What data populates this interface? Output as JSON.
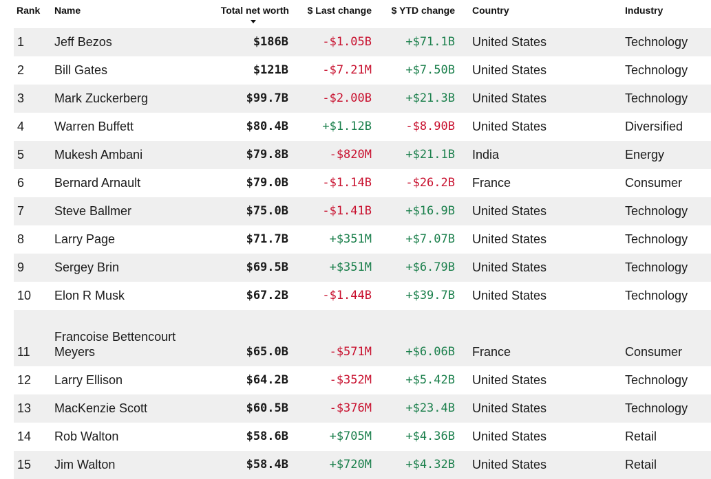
{
  "header": {
    "rank": "Rank",
    "name": "Name",
    "net_worth": "Total net worth",
    "last_change": "$ Last change",
    "ytd_change": "$ YTD change",
    "country": "Country",
    "industry": "Industry",
    "sort_icon": "caret-down-icon"
  },
  "colors": {
    "negative": "#c8102e",
    "positive": "#1a7f4b",
    "alt_row": "#efefef"
  },
  "rows": [
    {
      "rank": "1",
      "name": "Jeff Bezos",
      "net_worth": "$186B",
      "last_change": "-$1.05B",
      "ytd_change": "+$71.1B",
      "country": "United States",
      "industry": "Technology"
    },
    {
      "rank": "2",
      "name": "Bill Gates",
      "net_worth": "$121B",
      "last_change": "-$7.21M",
      "ytd_change": "+$7.50B",
      "country": "United States",
      "industry": "Technology"
    },
    {
      "rank": "3",
      "name": "Mark Zuckerberg",
      "net_worth": "$99.7B",
      "last_change": "-$2.00B",
      "ytd_change": "+$21.3B",
      "country": "United States",
      "industry": "Technology"
    },
    {
      "rank": "4",
      "name": "Warren Buffett",
      "net_worth": "$80.4B",
      "last_change": "+$1.12B",
      "ytd_change": "-$8.90B",
      "country": "United States",
      "industry": "Diversified"
    },
    {
      "rank": "5",
      "name": "Mukesh Ambani",
      "net_worth": "$79.8B",
      "last_change": "-$820M",
      "ytd_change": "+$21.1B",
      "country": "India",
      "industry": "Energy"
    },
    {
      "rank": "6",
      "name": "Bernard Arnault",
      "net_worth": "$79.0B",
      "last_change": "-$1.14B",
      "ytd_change": "-$26.2B",
      "country": "France",
      "industry": "Consumer"
    },
    {
      "rank": "7",
      "name": "Steve Ballmer",
      "net_worth": "$75.0B",
      "last_change": "-$1.41B",
      "ytd_change": "+$16.9B",
      "country": "United States",
      "industry": "Technology"
    },
    {
      "rank": "8",
      "name": "Larry Page",
      "net_worth": "$71.7B",
      "last_change": "+$351M",
      "ytd_change": "+$7.07B",
      "country": "United States",
      "industry": "Technology"
    },
    {
      "rank": "9",
      "name": "Sergey Brin",
      "net_worth": "$69.5B",
      "last_change": "+$351M",
      "ytd_change": "+$6.79B",
      "country": "United States",
      "industry": "Technology"
    },
    {
      "rank": "10",
      "name": "Elon R Musk",
      "net_worth": "$67.2B",
      "last_change": "-$1.44B",
      "ytd_change": "+$39.7B",
      "country": "United States",
      "industry": "Technology"
    },
    {
      "rank": "11",
      "name": "Francoise Bettencourt Meyers",
      "net_worth": "$65.0B",
      "last_change": "-$571M",
      "ytd_change": "+$6.06B",
      "country": "France",
      "industry": "Consumer"
    },
    {
      "rank": "12",
      "name": "Larry Ellison",
      "net_worth": "$64.2B",
      "last_change": "-$352M",
      "ytd_change": "+$5.42B",
      "country": "United States",
      "industry": "Technology"
    },
    {
      "rank": "13",
      "name": "MacKenzie Scott",
      "net_worth": "$60.5B",
      "last_change": "-$376M",
      "ytd_change": "+$23.4B",
      "country": "United States",
      "industry": "Technology"
    },
    {
      "rank": "14",
      "name": "Rob Walton",
      "net_worth": "$58.6B",
      "last_change": "+$705M",
      "ytd_change": "+$4.36B",
      "country": "United States",
      "industry": "Retail"
    },
    {
      "rank": "15",
      "name": "Jim Walton",
      "net_worth": "$58.4B",
      "last_change": "+$720M",
      "ytd_change": "+$4.32B",
      "country": "United States",
      "industry": "Retail"
    }
  ]
}
